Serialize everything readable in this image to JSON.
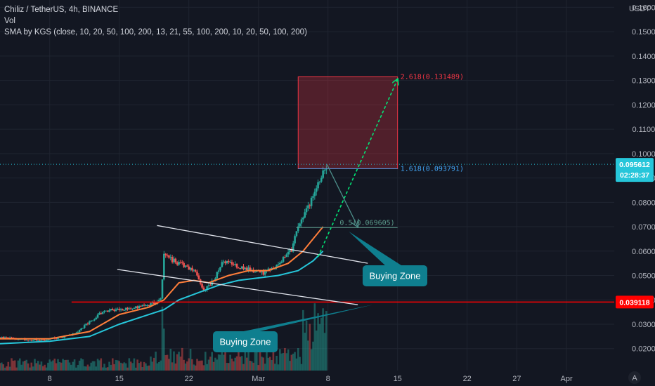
{
  "legend": {
    "symbol": "Chiliz / TetherUS, 4h, BINANCE",
    "vol": "Vol",
    "sma": "SMA by KGS (close, 10, 20, 50, 100, 200, 13, 21, 55, 100, 200, 10, 20, 50, 100, 200)"
  },
  "currency": "USDT",
  "price_tag": {
    "value": "0.095612",
    "countdown": "02:28:37",
    "color": "#26c6da"
  },
  "support_tag": {
    "value": "0.039118",
    "color": "#ff0000"
  },
  "fib_labels": {
    "top": "2.618(0.131489)",
    "mid": "1.618(0.093791)",
    "half": "0.5(0.069605)"
  },
  "callouts": [
    "Buying Zone",
    "Buying Zone"
  ],
  "auto_label": "A",
  "chart_data": {
    "type": "candlestick",
    "title": "Chiliz / TetherUS, 4h, BINANCE",
    "y_tick_labels": [
      "0.020000",
      "0.030000",
      "0.040000",
      "0.050000",
      "0.060000",
      "0.070000",
      "0.080000",
      "0.090000",
      "0.100000",
      "0.110000",
      "0.120000",
      "0.130000",
      "0.140000",
      "0.150000",
      "0.160000"
    ],
    "y_ticks": [
      0.02,
      0.03,
      0.04,
      0.05,
      0.06,
      0.07,
      0.08,
      0.09,
      0.1,
      0.11,
      0.12,
      0.13,
      0.14,
      0.15,
      0.16
    ],
    "ylim": [
      0.011,
      0.163
    ],
    "x_ticks": [
      {
        "label": "8",
        "day": 8
      },
      {
        "label": "15",
        "day": 15
      },
      {
        "label": "22",
        "day": 22
      },
      {
        "label": "Mar",
        "day": 29
      },
      {
        "label": "8",
        "day": 36
      },
      {
        "label": "15",
        "day": 43
      },
      {
        "label": "22",
        "day": 50
      },
      {
        "label": "27",
        "day": 55
      },
      {
        "label": "Apr",
        "day": 60
      }
    ],
    "xlim_day": [
      3.0,
      64.8
    ],
    "candles_day_range": [
      3.0,
      35.9
    ],
    "price_path": [
      [
        3.0,
        0.0245
      ],
      [
        5.0,
        0.024
      ],
      [
        7.0,
        0.0235
      ],
      [
        9.0,
        0.0245
      ],
      [
        10.5,
        0.026
      ],
      [
        12.0,
        0.031
      ],
      [
        13.5,
        0.0355
      ],
      [
        15.0,
        0.036
      ],
      [
        16.5,
        0.037
      ],
      [
        18.0,
        0.038
      ],
      [
        19.2,
        0.04
      ],
      [
        19.5,
        0.058
      ],
      [
        20.5,
        0.056
      ],
      [
        21.5,
        0.054
      ],
      [
        22.5,
        0.052
      ],
      [
        23.5,
        0.044
      ],
      [
        24.5,
        0.048
      ],
      [
        25.5,
        0.056
      ],
      [
        26.5,
        0.054
      ],
      [
        27.5,
        0.053
      ],
      [
        28.5,
        0.052
      ],
      [
        29.5,
        0.051
      ],
      [
        30.5,
        0.053
      ],
      [
        31.5,
        0.057
      ],
      [
        32.3,
        0.06
      ],
      [
        32.8,
        0.068
      ],
      [
        33.5,
        0.074
      ],
      [
        34.2,
        0.08
      ],
      [
        34.8,
        0.085
      ],
      [
        35.3,
        0.09
      ],
      [
        35.9,
        0.0956
      ]
    ],
    "sma_fast_path": [
      [
        3.0,
        0.024
      ],
      [
        8.0,
        0.024
      ],
      [
        12.0,
        0.027
      ],
      [
        15.0,
        0.034
      ],
      [
        18.0,
        0.037
      ],
      [
        19.5,
        0.04
      ],
      [
        21.0,
        0.047
      ],
      [
        22.5,
        0.048
      ],
      [
        24.0,
        0.047
      ],
      [
        26.0,
        0.05
      ],
      [
        28.0,
        0.052
      ],
      [
        30.0,
        0.052
      ],
      [
        32.0,
        0.055
      ],
      [
        33.5,
        0.06
      ],
      [
        34.5,
        0.065
      ],
      [
        35.5,
        0.07
      ]
    ],
    "sma_slow_path": [
      [
        3.0,
        0.022
      ],
      [
        8.0,
        0.023
      ],
      [
        12.0,
        0.025
      ],
      [
        15.0,
        0.03
      ],
      [
        18.0,
        0.034
      ],
      [
        19.5,
        0.036
      ],
      [
        21.0,
        0.04
      ],
      [
        23.0,
        0.043
      ],
      [
        25.0,
        0.046
      ],
      [
        27.0,
        0.048
      ],
      [
        29.0,
        0.049
      ],
      [
        31.0,
        0.05
      ],
      [
        33.0,
        0.052
      ],
      [
        34.5,
        0.056
      ],
      [
        35.5,
        0.06
      ]
    ],
    "support_level": 0.039118,
    "current_price": 0.095612,
    "fib_levels": [
      {
        "label": "2.618",
        "price": 0.131489
      },
      {
        "label": "1.618",
        "price": 0.093791
      },
      {
        "label": "0.5",
        "price": 0.069605
      }
    ],
    "target_box": {
      "day_from": 33.0,
      "day_to": 43.0,
      "price_low": 0.093791,
      "price_high": 0.131489
    },
    "channel_upper": [
      [
        18.8,
        0.0705
      ],
      [
        40.0,
        0.055
      ]
    ],
    "channel_lower": [
      [
        14.8,
        0.0525
      ],
      [
        39.0,
        0.038
      ]
    ],
    "projection_up": [
      [
        35.0,
        0.0577
      ],
      [
        43.0,
        0.1305
      ]
    ],
    "projection_down": [
      [
        35.9,
        0.0955
      ],
      [
        39.0,
        0.07
      ]
    ],
    "series": [
      {
        "name": "Vol"
      }
    ]
  }
}
